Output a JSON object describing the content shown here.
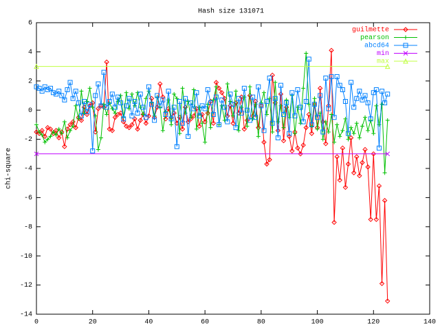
{
  "chart_data": {
    "type": "line",
    "title": "Hash size 131071",
    "ylabel": "chi-square",
    "xlim": [
      0,
      140
    ],
    "ylim": [
      -14,
      6
    ],
    "xticks": [
      0,
      20,
      40,
      60,
      80,
      100,
      120,
      140
    ],
    "yticks": [
      -14,
      -12,
      -10,
      -8,
      -6,
      -4,
      -2,
      0,
      2,
      4,
      6
    ],
    "legend": "upper right",
    "x": [
      0,
      1,
      2,
      3,
      4,
      5,
      6,
      7,
      8,
      9,
      10,
      11,
      12,
      13,
      14,
      15,
      16,
      17,
      18,
      19,
      20,
      21,
      22,
      23,
      24,
      25,
      26,
      27,
      28,
      29,
      30,
      31,
      32,
      33,
      34,
      35,
      36,
      37,
      38,
      39,
      40,
      41,
      42,
      43,
      44,
      45,
      46,
      47,
      48,
      49,
      50,
      51,
      52,
      53,
      54,
      55,
      56,
      57,
      58,
      59,
      60,
      61,
      62,
      63,
      64,
      65,
      66,
      67,
      68,
      69,
      70,
      71,
      72,
      73,
      74,
      75,
      76,
      77,
      78,
      79,
      80,
      81,
      82,
      83,
      84,
      85,
      86,
      87,
      88,
      89,
      90,
      91,
      92,
      93,
      94,
      95,
      96,
      97,
      98,
      99,
      100,
      101,
      102,
      103,
      104,
      105,
      106,
      107,
      108,
      109,
      110,
      111,
      112,
      113,
      114,
      115,
      116,
      117,
      118,
      119,
      120,
      121,
      122,
      123,
      124,
      125
    ],
    "series": [
      {
        "name": "guilmette",
        "color": "#ff0000",
        "marker": "diamond",
        "values": [
          -1.5,
          -1.6,
          -1.4,
          -1.8,
          -1.2,
          -1.3,
          -1.6,
          -1.4,
          -1.9,
          -1.5,
          -2.5,
          -1.3,
          -1.0,
          -0.8,
          -1.2,
          -0.5,
          -0.7,
          0.2,
          -0.3,
          0.3,
          0.5,
          -1.5,
          0.1,
          0.3,
          0.2,
          3.3,
          -1.3,
          -1.4,
          -0.5,
          -0.3,
          -0.2,
          -0.8,
          -1.1,
          -1.2,
          -1.0,
          -0.6,
          -1.3,
          -0.7,
          -0.3,
          -0.9,
          -0.4,
          0.8,
          -0.5,
          0.2,
          1.8,
          0.9,
          -0.6,
          0.1,
          -0.5,
          -0.2,
          -0.9,
          -0.5,
          -1.3,
          0.2,
          -0.8,
          -0.6,
          -0.4,
          0.1,
          -1.1,
          -0.3,
          -0.8,
          -0.2,
          0.6,
          -0.9,
          1.9,
          1.5,
          1.2,
          0.8,
          -0.4,
          0.3,
          -0.9,
          0.5,
          -0.2,
          0.9,
          -1.3,
          -0.7,
          1.0,
          -0.4,
          0.6,
          -1.2,
          0.3,
          -2.2,
          -3.7,
          -3.4,
          2.4,
          0.5,
          -1.4,
          1.1,
          -2.1,
          0.2,
          -1.8,
          -2.8,
          -1.5,
          -2.6,
          -3.0,
          -2.4,
          -1.2,
          -0.3,
          -1.6,
          0.4,
          -1.2,
          1.5,
          -0.8,
          -2.3,
          0.3,
          4.1,
          -7.7,
          -3.2,
          -4.8,
          -2.6,
          -5.3,
          -3.7,
          -1.9,
          -4.3,
          -3.2,
          -4.5,
          -3.6,
          -2.7,
          -3.9,
          -7.5,
          -3.0,
          -7.5,
          -5.2,
          -11.9,
          -6.2,
          -13.1
        ]
      },
      {
        "name": "pearson",
        "color": "#00c000",
        "marker": "plus",
        "values": [
          -1.0,
          -1.5,
          -1.7,
          -2.2,
          -2.0,
          -1.8,
          -1.5,
          -1.7,
          -1.3,
          -1.6,
          -0.8,
          -1.9,
          -1.4,
          -1.1,
          0.3,
          -0.6,
          1.3,
          -0.2,
          0.6,
          1.5,
          0.2,
          -0.4,
          -2.7,
          -1.9,
          0.4,
          -0.3,
          0.5,
          0.1,
          -0.2,
          0.6,
          1.0,
          -0.5,
          1.2,
          0.1,
          1.1,
          0.3,
          1.2,
          0.2,
          -0.3,
          0.8,
          1.3,
          0.5,
          -0.4,
          0.9,
          0.2,
          -1.4,
          -0.1,
          0.7,
          -1.0,
          1.1,
          0.8,
          -1.6,
          1.5,
          -0.2,
          0.6,
          -0.5,
          1.4,
          -1.3,
          0.2,
          -0.9,
          -2.2,
          0.4,
          -1.2,
          0.7,
          1.6,
          -1.0,
          0.3,
          -0.7,
          1.8,
          0.6,
          -0.4,
          1.3,
          -1.4,
          0.2,
          0.9,
          -1.1,
          1.6,
          -0.6,
          0.4,
          -1.8,
          0.5,
          1.2,
          -0.3,
          0.8,
          -1.5,
          1.9,
          -0.8,
          0.3,
          -1.2,
          0.7,
          -0.5,
          1.0,
          -1.6,
          0.2,
          -0.9,
          1.5,
          3.9,
          0.4,
          -1.1,
          0.8,
          -1.3,
          -0.2,
          -2.0,
          -0.8,
          -1.5,
          -0.3,
          -2.2,
          -1.0,
          -1.8,
          -1.4,
          -0.6,
          -2.0,
          -1.2,
          -1.6,
          -0.9,
          -1.9,
          -1.1,
          -0.5,
          -1.4,
          -0.7,
          -1.6,
          0.3,
          -1.0,
          0.4,
          -4.3,
          -0.7
        ]
      },
      {
        "name": "abcd64",
        "color": "#0080ff",
        "marker": "square",
        "values": [
          1.6,
          1.5,
          1.3,
          1.6,
          1.4,
          1.5,
          1.2,
          1.1,
          1.3,
          1.0,
          0.7,
          1.4,
          1.9,
          0.8,
          1.3,
          0.5,
          -0.4,
          0.6,
          -0.1,
          0.4,
          -2.8,
          1.0,
          1.8,
          0.3,
          2.6,
          0.2,
          0.6,
          1.1,
          0.2,
          0.9,
          0.5,
          -0.6,
          0.3,
          0.8,
          -0.4,
          0.6,
          -0.2,
          1.1,
          0.2,
          -0.5,
          1.6,
          0.4,
          -0.7,
          1.0,
          0.3,
          0.7,
          -0.3,
          1.3,
          -0.6,
          0.2,
          -2.5,
          0.6,
          -0.9,
          0.8,
          -1.8,
          0.5,
          0.1,
          1.2,
          -0.4,
          0.3,
          0.1,
          1.4,
          0.5,
          -0.3,
          0.9,
          -1.0,
          0.7,
          0.2,
          -0.8,
          1.1,
          0.4,
          -1.2,
          0.8,
          -0.2,
          1.5,
          0.0,
          -0.7,
          0.9,
          -0.5,
          1.6,
          0.3,
          -1.4,
          0.6,
          2.2,
          -0.9,
          0.8,
          -1.9,
          1.7,
          -0.3,
          0.5,
          -1.6,
          1.2,
          -0.4,
          1.4,
          0.2,
          -0.8,
          0.6,
          3.5,
          -1.0,
          0.4,
          -0.5,
          1.0,
          -1.5,
          2.2,
          0.1,
          2.3,
          -0.5,
          2.3,
          1.7,
          1.4,
          0.6,
          -1.6,
          1.9,
          0.2,
          0.8,
          1.3,
          0.7,
          1.0,
          0.5,
          -0.6,
          1.2,
          1.4,
          -2.6,
          1.3,
          0.5,
          1.1
        ]
      },
      {
        "name": "min",
        "color": "#c000ff",
        "marker": "cross",
        "x": [
          0,
          125
        ],
        "values": [
          -3,
          -3
        ]
      },
      {
        "name": "max",
        "color": "#c0ff40",
        "marker": "triangle",
        "x": [
          0,
          125
        ],
        "values": [
          3,
          3
        ]
      }
    ]
  }
}
